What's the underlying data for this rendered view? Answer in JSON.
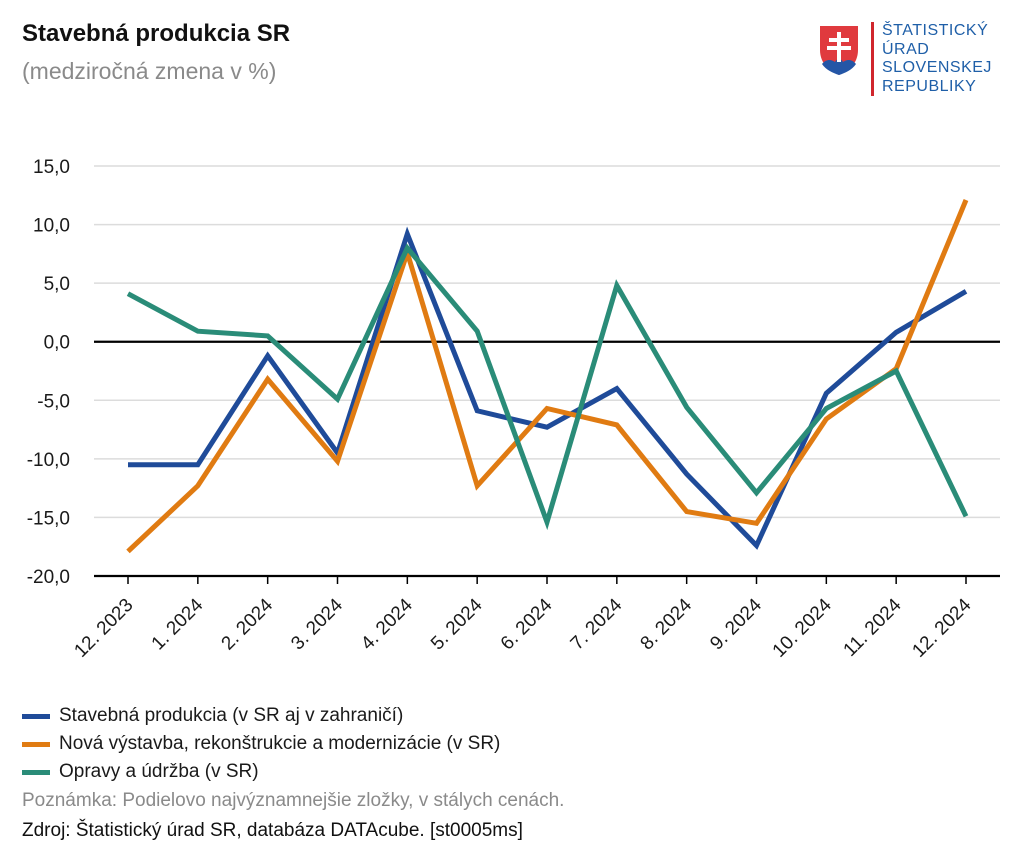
{
  "header": {
    "title": "Stavebná produkcia SR",
    "subtitle": "(medziročná zmena v %)"
  },
  "logo": {
    "lines": [
      "ŠTATISTICKÝ",
      "ÚRAD",
      "SLOVENSKEJ",
      "REPUBLIKY"
    ],
    "text_color": "#1f5fa8",
    "bar_color": "#d0262d"
  },
  "chart_data": {
    "type": "line",
    "title": "Stavebná produkcia SR",
    "subtitle": "(medziročná zmena v %)",
    "xlabel": "",
    "ylabel": "",
    "ylim": [
      -20,
      15
    ],
    "yticks": [
      15,
      10,
      5,
      0,
      -5,
      -10,
      -15,
      -20
    ],
    "ytick_labels": [
      "15,0",
      "10,0",
      "5,0",
      "0,0",
      "-5,0",
      "-10,0",
      "-15,0",
      "-20,0"
    ],
    "categories": [
      "12. 2023",
      "1. 2024",
      "2. 2024",
      "3. 2024",
      "4. 2024",
      "5. 2024",
      "6. 2024",
      "7. 2024",
      "8. 2024",
      "9. 2024",
      "10. 2024",
      "11. 2024",
      "12. 2024"
    ],
    "grid": true,
    "legend_position": "bottom-left",
    "series": [
      {
        "name": "Stavebná produkcia (v SR aj v zahraničí)",
        "color": "#1f4b99",
        "values": [
          -10.5,
          -10.5,
          -1.2,
          -9.5,
          9.2,
          -5.9,
          -7.3,
          -4.0,
          -11.3,
          -17.4,
          -4.4,
          0.8,
          4.3
        ]
      },
      {
        "name": "Nová výstavba, rekonštrukcie a modernizácie (v SR)",
        "color": "#e07b12",
        "values": [
          -17.9,
          -12.3,
          -3.2,
          -10.2,
          7.6,
          -12.3,
          -5.7,
          -7.1,
          -14.5,
          -15.5,
          -6.6,
          -2.3,
          12.1
        ]
      },
      {
        "name": "Opravy a údržba (v SR)",
        "color": "#2a8c78",
        "values": [
          4.1,
          0.9,
          0.5,
          -4.9,
          8.0,
          0.9,
          -15.4,
          4.8,
          -5.6,
          -12.9,
          -5.7,
          -2.5,
          -14.9
        ]
      }
    ]
  },
  "footer": {
    "note": "Poznámka: Podielovo najvýznamnejšie zložky, v stálych cenách.",
    "source": "Zdroj: Štatistický úrad SR, databáza DATAcube. [st0005ms]"
  }
}
